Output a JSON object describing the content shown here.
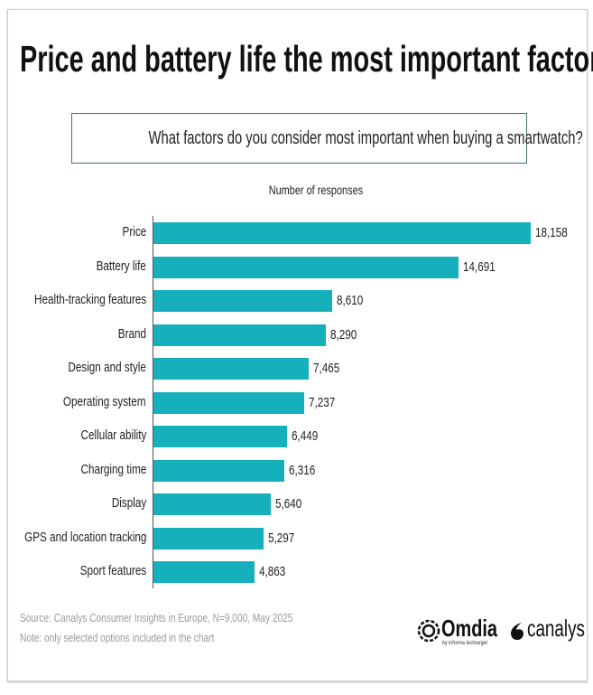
{
  "chart_data": {
    "type": "bar",
    "orientation": "horizontal",
    "title": "Price and battery life the most important factors",
    "subtitle": "What factors do you consider most important when buying a smartwatch?",
    "xlabel": "Number of responses",
    "ylabel": "",
    "categories": [
      "Price",
      "Battery life",
      "Health-tracking features",
      "Brand",
      "Design and style",
      "Operating system",
      "Cellular ability",
      "Charging time",
      "Display",
      "GPS and location tracking",
      "Sport features"
    ],
    "values": [
      18158,
      14691,
      8610,
      8290,
      7465,
      7237,
      6449,
      6316,
      5640,
      5297,
      4863
    ],
    "value_labels": [
      "18,158",
      "14,691",
      "8,610",
      "8,290",
      "7,465",
      "7,237",
      "6,449",
      "6,316",
      "5,640",
      "5,297",
      "4,863"
    ],
    "xlim": [
      0,
      18158
    ],
    "grid": false,
    "bar_color": "#16b0bd"
  },
  "footer": {
    "source": "Source: Canalys Consumer Insights in Europe, N=9,000, May 2025",
    "note": "Note: only selected options included in the chart"
  },
  "logos": {
    "omdia": "Omdia",
    "omdia_sub": "by informa techtarget",
    "canalys": "canalys"
  }
}
